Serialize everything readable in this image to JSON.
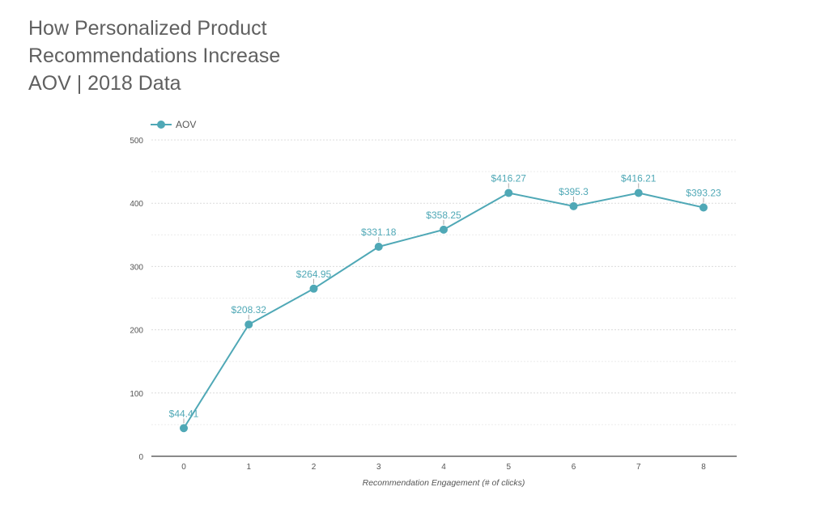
{
  "chart_data": {
    "type": "line",
    "title_lines": [
      "How Personalized Product",
      "Recommendations Increase",
      "AOV | 2018 Data"
    ],
    "xlabel": "Recommendation Engagement (# of clicks)",
    "ylabel": "",
    "x": [
      0,
      1,
      2,
      3,
      4,
      5,
      6,
      7,
      8
    ],
    "xlim": [
      0,
      8
    ],
    "ylim": [
      0,
      500
    ],
    "yticks": [
      0,
      100,
      200,
      300,
      400,
      500
    ],
    "grid": true,
    "legend_position": "top-left",
    "series": [
      {
        "name": "AOV",
        "color": "#4fa8b6",
        "values": [
          44.41,
          208.32,
          264.95,
          331.18,
          358.25,
          416.27,
          395.3,
          416.21,
          393.23
        ],
        "labels": [
          "$44.41",
          "$208.32",
          "$264.95",
          "$331.18",
          "$358.25",
          "$416.27",
          "$395.3",
          "$416.21",
          "$393.23"
        ]
      }
    ]
  }
}
